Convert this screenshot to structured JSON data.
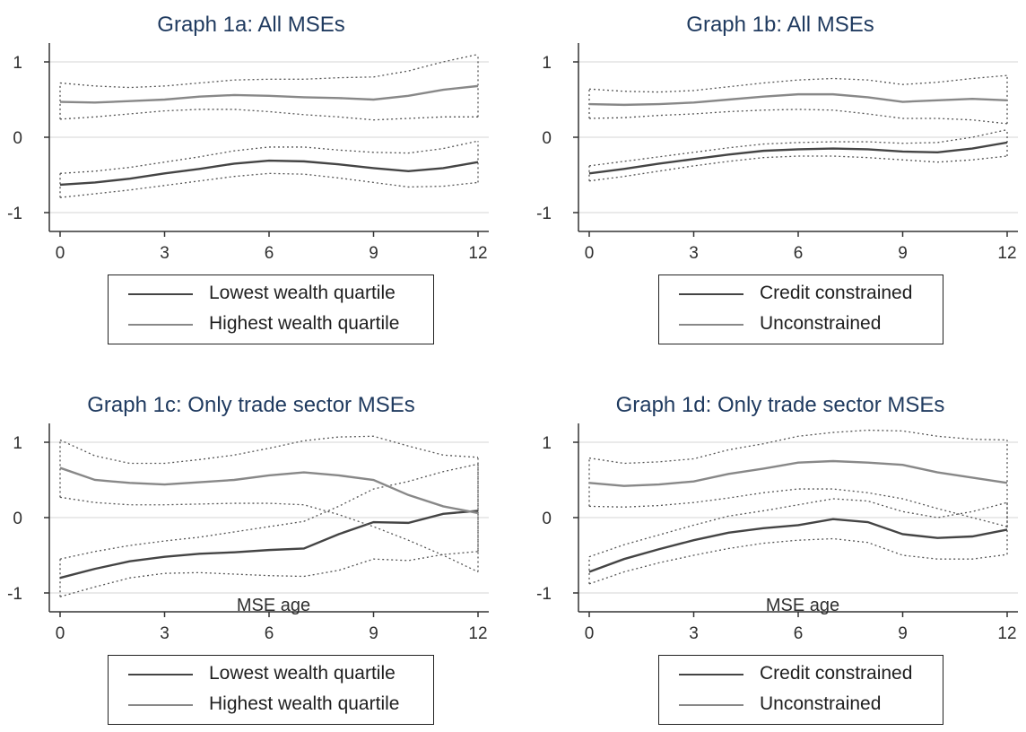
{
  "chart_data": [
    {
      "type": "line",
      "title": "Graph 1a: All MSEs",
      "xlabel": "",
      "ylabel": "",
      "xlim": [
        0,
        12
      ],
      "ylim": [
        -1.25,
        1.25
      ],
      "xticks": [
        0,
        3,
        6,
        9,
        12
      ],
      "yticks": [
        -1,
        0,
        1
      ],
      "grid": "horizontal",
      "legend": [
        "Lowest wealth quartile",
        "Highest wealth quartile"
      ],
      "series": [
        {
          "name": "Lowest wealth quartile",
          "color": "#444444",
          "x": [
            0,
            1,
            2,
            3,
            4,
            5,
            6,
            7,
            8,
            9,
            10,
            11,
            12
          ],
          "y": [
            -0.63,
            -0.6,
            -0.55,
            -0.48,
            -0.42,
            -0.35,
            -0.31,
            -0.32,
            -0.36,
            -0.41,
            -0.45,
            -0.41,
            -0.33
          ],
          "ci_low": [
            -0.8,
            -0.75,
            -0.7,
            -0.64,
            -0.58,
            -0.52,
            -0.48,
            -0.49,
            -0.54,
            -0.6,
            -0.66,
            -0.65,
            -0.6
          ],
          "ci_high": [
            -0.48,
            -0.45,
            -0.4,
            -0.33,
            -0.26,
            -0.18,
            -0.13,
            -0.13,
            -0.17,
            -0.2,
            -0.21,
            -0.15,
            -0.05
          ]
        },
        {
          "name": "Highest wealth quartile",
          "color": "#888888",
          "x": [
            0,
            1,
            2,
            3,
            4,
            5,
            6,
            7,
            8,
            9,
            10,
            11,
            12
          ],
          "y": [
            0.47,
            0.46,
            0.48,
            0.5,
            0.54,
            0.56,
            0.55,
            0.53,
            0.52,
            0.5,
            0.55,
            0.63,
            0.68
          ],
          "ci_low": [
            0.24,
            0.27,
            0.31,
            0.35,
            0.37,
            0.37,
            0.34,
            0.3,
            0.27,
            0.23,
            0.25,
            0.27,
            0.27
          ],
          "ci_high": [
            0.72,
            0.68,
            0.66,
            0.68,
            0.72,
            0.76,
            0.77,
            0.77,
            0.79,
            0.8,
            0.88,
            1.0,
            1.1
          ]
        }
      ]
    },
    {
      "type": "line",
      "title": "Graph 1b: All MSEs",
      "xlabel": "",
      "ylabel": "",
      "xlim": [
        0,
        12
      ],
      "ylim": [
        -1.25,
        1.25
      ],
      "xticks": [
        0,
        3,
        6,
        9,
        12
      ],
      "yticks": [
        -1,
        0,
        1
      ],
      "grid": "horizontal",
      "legend": [
        "Credit constrained",
        "Unconstrained"
      ],
      "series": [
        {
          "name": "Credit constrained",
          "color": "#444444",
          "x": [
            0,
            1,
            2,
            3,
            4,
            5,
            6,
            7,
            8,
            9,
            10,
            11,
            12
          ],
          "y": [
            -0.48,
            -0.42,
            -0.35,
            -0.29,
            -0.23,
            -0.18,
            -0.16,
            -0.15,
            -0.16,
            -0.19,
            -0.2,
            -0.15,
            -0.07
          ],
          "ci_low": [
            -0.58,
            -0.52,
            -0.45,
            -0.38,
            -0.32,
            -0.27,
            -0.25,
            -0.25,
            -0.27,
            -0.3,
            -0.33,
            -0.3,
            -0.25
          ],
          "ci_high": [
            -0.38,
            -0.32,
            -0.26,
            -0.2,
            -0.14,
            -0.09,
            -0.07,
            -0.06,
            -0.06,
            -0.08,
            -0.07,
            0.0,
            0.1
          ]
        },
        {
          "name": "Unconstrained",
          "color": "#888888",
          "x": [
            0,
            1,
            2,
            3,
            4,
            5,
            6,
            7,
            8,
            9,
            10,
            11,
            12
          ],
          "y": [
            0.44,
            0.43,
            0.44,
            0.46,
            0.5,
            0.54,
            0.57,
            0.57,
            0.53,
            0.47,
            0.49,
            0.51,
            0.49
          ],
          "ci_low": [
            0.25,
            0.26,
            0.29,
            0.31,
            0.34,
            0.36,
            0.37,
            0.36,
            0.31,
            0.25,
            0.25,
            0.23,
            0.18
          ],
          "ci_high": [
            0.64,
            0.61,
            0.6,
            0.62,
            0.67,
            0.72,
            0.76,
            0.78,
            0.76,
            0.7,
            0.73,
            0.78,
            0.82
          ]
        }
      ]
    },
    {
      "type": "line",
      "title": "Graph 1c: Only trade sector MSEs",
      "xlabel": "MSE age",
      "ylabel": "",
      "xlim": [
        0,
        12
      ],
      "ylim": [
        -1.25,
        1.25
      ],
      "xticks": [
        0,
        3,
        6,
        9,
        12
      ],
      "yticks": [
        -1,
        0,
        1
      ],
      "grid": "horizontal",
      "legend": [
        "Lowest wealth quartile",
        "Highest wealth quartile"
      ],
      "series": [
        {
          "name": "Lowest wealth quartile",
          "color": "#444444",
          "x": [
            0,
            1,
            2,
            3,
            4,
            5,
            6,
            7,
            8,
            9,
            10,
            11,
            12
          ],
          "y": [
            -0.8,
            -0.68,
            -0.58,
            -0.52,
            -0.48,
            -0.46,
            -0.43,
            -0.41,
            -0.22,
            -0.06,
            -0.07,
            0.05,
            0.09
          ],
          "ci_low": [
            -1.05,
            -0.92,
            -0.8,
            -0.74,
            -0.73,
            -0.75,
            -0.77,
            -0.78,
            -0.7,
            -0.55,
            -0.57,
            -0.49,
            -0.45
          ],
          "ci_high": [
            -0.55,
            -0.45,
            -0.37,
            -0.31,
            -0.26,
            -0.19,
            -0.12,
            -0.05,
            0.15,
            0.38,
            0.48,
            0.61,
            0.71
          ]
        },
        {
          "name": "Highest wealth quartile",
          "color": "#888888",
          "x": [
            0,
            1,
            2,
            3,
            4,
            5,
            6,
            7,
            8,
            9,
            10,
            11,
            12
          ],
          "y": [
            0.66,
            0.5,
            0.46,
            0.44,
            0.47,
            0.5,
            0.56,
            0.6,
            0.56,
            0.5,
            0.3,
            0.15,
            0.06
          ],
          "ci_low": [
            0.27,
            0.2,
            0.17,
            0.17,
            0.18,
            0.19,
            0.19,
            0.17,
            0.04,
            -0.12,
            -0.3,
            -0.5,
            -0.72
          ],
          "ci_high": [
            1.03,
            0.82,
            0.72,
            0.72,
            0.77,
            0.83,
            0.92,
            1.02,
            1.07,
            1.08,
            0.95,
            0.83,
            0.8
          ]
        }
      ]
    },
    {
      "type": "line",
      "title": "Graph 1d: Only trade sector MSEs",
      "xlabel": "MSE age",
      "ylabel": "",
      "xlim": [
        0,
        12
      ],
      "ylim": [
        -1.25,
        1.25
      ],
      "xticks": [
        0,
        3,
        6,
        9,
        12
      ],
      "yticks": [
        -1,
        0,
        1
      ],
      "grid": "horizontal",
      "legend": [
        "Credit constrained",
        "Unconstrained"
      ],
      "series": [
        {
          "name": "Credit constrained",
          "color": "#444444",
          "x": [
            0,
            1,
            2,
            3,
            4,
            5,
            6,
            7,
            8,
            9,
            10,
            11,
            12
          ],
          "y": [
            -0.72,
            -0.55,
            -0.42,
            -0.3,
            -0.2,
            -0.14,
            -0.1,
            -0.02,
            -0.06,
            -0.22,
            -0.27,
            -0.25,
            -0.16
          ],
          "ci_low": [
            -0.88,
            -0.72,
            -0.6,
            -0.5,
            -0.41,
            -0.34,
            -0.3,
            -0.28,
            -0.33,
            -0.5,
            -0.55,
            -0.55,
            -0.49
          ],
          "ci_high": [
            -0.52,
            -0.36,
            -0.23,
            -0.1,
            0.02,
            0.09,
            0.17,
            0.25,
            0.22,
            0.08,
            0.0,
            0.08,
            0.2
          ]
        },
        {
          "name": "Unconstrained",
          "color": "#888888",
          "x": [
            0,
            1,
            2,
            3,
            4,
            5,
            6,
            7,
            8,
            9,
            10,
            11,
            12
          ],
          "y": [
            0.46,
            0.42,
            0.44,
            0.48,
            0.58,
            0.65,
            0.73,
            0.75,
            0.73,
            0.7,
            0.6,
            0.53,
            0.46
          ],
          "ci_low": [
            0.15,
            0.14,
            0.16,
            0.2,
            0.26,
            0.33,
            0.38,
            0.38,
            0.33,
            0.25,
            0.12,
            0.0,
            -0.12
          ],
          "ci_high": [
            0.79,
            0.72,
            0.74,
            0.78,
            0.9,
            0.98,
            1.08,
            1.13,
            1.16,
            1.15,
            1.08,
            1.04,
            1.03
          ]
        }
      ]
    }
  ]
}
